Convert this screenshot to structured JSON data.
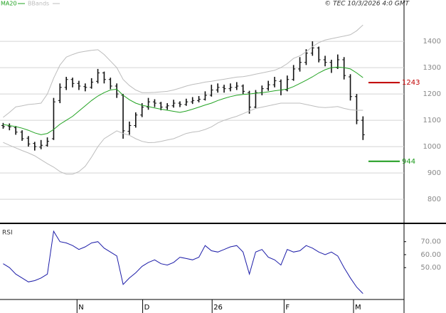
{
  "header": {
    "credit": "© TEC 10/3/2026 4:0 GMT"
  },
  "chart_data": [
    {
      "type": "ohlc",
      "x": [
        0,
        1,
        2,
        3,
        4,
        5,
        6,
        7,
        8,
        9,
        10,
        11,
        12,
        13,
        14,
        15,
        16,
        17,
        18,
        19,
        20,
        21,
        22,
        23,
        24,
        25,
        26,
        27,
        28,
        29,
        30,
        31,
        32,
        33,
        34,
        35,
        36,
        37,
        38,
        39,
        40,
        41,
        42,
        43,
        44,
        45,
        46,
        47,
        48,
        49,
        50,
        51,
        52,
        53,
        54,
        55,
        56,
        57
      ],
      "xlim": [
        -0.5,
        63.5
      ],
      "ylim": [
        711,
        1557
      ],
      "yticks": [
        800,
        900,
        1000,
        1100,
        1200,
        1300,
        1400
      ],
      "grid": true,
      "bar_color": "#111111",
      "ohlc": [
        [
          1080,
          1090,
          1068,
          1076
        ],
        [
          1078,
          1088,
          1062,
          1075
        ],
        [
          1072,
          1078,
          1045,
          1055
        ],
        [
          1055,
          1062,
          1022,
          1030
        ],
        [
          1032,
          1040,
          1000,
          1010
        ],
        [
          1012,
          1018,
          985,
          1000
        ],
        [
          998,
          1025,
          990,
          1005
        ],
        [
          1005,
          1035,
          1000,
          1020
        ],
        [
          1030,
          1185,
          1025,
          1170
        ],
        [
          1175,
          1240,
          1165,
          1225
        ],
        [
          1225,
          1265,
          1215,
          1255
        ],
        [
          1255,
          1262,
          1225,
          1240
        ],
        [
          1240,
          1250,
          1215,
          1230
        ],
        [
          1228,
          1240,
          1210,
          1225
        ],
        [
          1225,
          1260,
          1220,
          1245
        ],
        [
          1248,
          1295,
          1240,
          1280
        ],
        [
          1280,
          1285,
          1240,
          1255
        ],
        [
          1255,
          1262,
          1218,
          1230
        ],
        [
          1230,
          1240,
          1185,
          1200
        ],
        [
          1195,
          1200,
          1030,
          1060
        ],
        [
          1058,
          1095,
          1045,
          1080
        ],
        [
          1080,
          1130,
          1072,
          1120
        ],
        [
          1120,
          1165,
          1112,
          1150
        ],
        [
          1150,
          1185,
          1140,
          1170
        ],
        [
          1170,
          1180,
          1150,
          1165
        ],
        [
          1165,
          1170,
          1138,
          1150
        ],
        [
          1150,
          1165,
          1140,
          1155
        ],
        [
          1155,
          1178,
          1148,
          1165
        ],
        [
          1165,
          1172,
          1150,
          1160
        ],
        [
          1160,
          1182,
          1155,
          1170
        ],
        [
          1170,
          1188,
          1162,
          1175
        ],
        [
          1175,
          1192,
          1168,
          1180
        ],
        [
          1180,
          1210,
          1175,
          1195
        ],
        [
          1195,
          1235,
          1190,
          1215
        ],
        [
          1215,
          1240,
          1205,
          1225
        ],
        [
          1225,
          1235,
          1205,
          1220
        ],
        [
          1220,
          1240,
          1210,
          1225
        ],
        [
          1225,
          1245,
          1215,
          1230
        ],
        [
          1230,
          1236,
          1200,
          1210
        ],
        [
          1205,
          1212,
          1125,
          1150
        ],
        [
          1150,
          1215,
          1145,
          1205
        ],
        [
          1205,
          1232,
          1195,
          1220
        ],
        [
          1220,
          1250,
          1212,
          1235
        ],
        [
          1235,
          1265,
          1225,
          1250
        ],
        [
          1248,
          1255,
          1195,
          1215
        ],
        [
          1215,
          1270,
          1210,
          1255
        ],
        [
          1255,
          1310,
          1250,
          1295
        ],
        [
          1295,
          1340,
          1285,
          1320
        ],
        [
          1320,
          1370,
          1310,
          1355
        ],
        [
          1355,
          1400,
          1345,
          1375
        ],
        [
          1375,
          1380,
          1320,
          1330
        ],
        [
          1330,
          1345,
          1305,
          1320
        ],
        [
          1320,
          1330,
          1280,
          1300
        ],
        [
          1300,
          1350,
          1295,
          1330
        ],
        [
          1330,
          1340,
          1255,
          1270
        ],
        [
          1265,
          1275,
          1175,
          1190
        ],
        [
          1190,
          1200,
          1085,
          1100
        ],
        [
          1100,
          1115,
          1025,
          1045
        ]
      ],
      "series": [
        {
          "name": "MA20",
          "color": "#22a322",
          "values": [
            1084,
            1080,
            1076,
            1070,
            1062,
            1052,
            1045,
            1050,
            1065,
            1085,
            1100,
            1115,
            1135,
            1155,
            1175,
            1192,
            1205,
            1215,
            1218,
            1195,
            1178,
            1165,
            1157,
            1152,
            1147,
            1142,
            1138,
            1134,
            1130,
            1135,
            1142,
            1150,
            1158,
            1165,
            1175,
            1183,
            1190,
            1195,
            1198,
            1200,
            1203,
            1205,
            1208,
            1212,
            1215,
            1219,
            1228,
            1240,
            1252,
            1265,
            1280,
            1292,
            1300,
            1302,
            1300,
            1295,
            1280,
            1262
          ]
        },
        {
          "name": "BBands",
          "color": "#bdbdbd",
          "upper": [
            1111,
            1130,
            1151,
            1155,
            1160,
            1162,
            1165,
            1200,
            1260,
            1310,
            1340,
            1350,
            1358,
            1362,
            1366,
            1368,
            1350,
            1325,
            1300,
            1255,
            1232,
            1215,
            1205,
            1205,
            1206,
            1208,
            1210,
            1215,
            1222,
            1230,
            1236,
            1240,
            1245,
            1248,
            1252,
            1256,
            1260,
            1264,
            1266,
            1270,
            1275,
            1280,
            1285,
            1290,
            1300,
            1315,
            1335,
            1345,
            1360,
            1380,
            1395,
            1405,
            1410,
            1415,
            1420,
            1425,
            1440,
            1462
          ],
          "lower": [
            1016,
            1005,
            995,
            985,
            976,
            965,
            950,
            935,
            922,
            905,
            895,
            895,
            905,
            925,
            960,
            1000,
            1030,
            1045,
            1060,
            1050,
            1043,
            1030,
            1020,
            1015,
            1016,
            1020,
            1025,
            1030,
            1040,
            1050,
            1055,
            1058,
            1065,
            1075,
            1090,
            1100,
            1108,
            1115,
            1125,
            1135,
            1145,
            1150,
            1155,
            1160,
            1165,
            1165,
            1165,
            1165,
            1160,
            1155,
            1150,
            1148,
            1150,
            1152,
            1145,
            1140,
            1138,
            1138
          ]
        }
      ],
      "price_lines": [
        {
          "value": 1243,
          "color": "#c00000"
        },
        {
          "value": 944,
          "color": "#1a9a1a"
        }
      ]
    },
    {
      "type": "line",
      "title": "RSI",
      "x": [
        0,
        1,
        2,
        3,
        4,
        5,
        6,
        7,
        8,
        9,
        10,
        11,
        12,
        13,
        14,
        15,
        16,
        17,
        18,
        19,
        20,
        21,
        22,
        23,
        24,
        25,
        26,
        27,
        28,
        29,
        30,
        31,
        32,
        33,
        34,
        35,
        36,
        37,
        38,
        39,
        40,
        41,
        42,
        43,
        44,
        45,
        46,
        47,
        48,
        49,
        50,
        51,
        52,
        53,
        54,
        55,
        56,
        57
      ],
      "xlim": [
        -0.5,
        63.5
      ],
      "xticks": [
        {
          "value": 11.7,
          "label": "N"
        },
        {
          "value": 22.1,
          "label": "D"
        },
        {
          "value": 33.1,
          "label": "26"
        },
        {
          "value": 44.5,
          "label": "F"
        },
        {
          "value": 55.5,
          "label": "M"
        }
      ],
      "ylim": [
        26,
        83
      ],
      "yticks": [
        {
          "value": 50,
          "label": "50.00"
        },
        {
          "value": 60,
          "label": "60.00"
        },
        {
          "value": 70,
          "label": "70.00"
        }
      ],
      "grid": false,
      "color": "#1c1ca8",
      "values": [
        53,
        50,
        45,
        42,
        39,
        40,
        42,
        45,
        78,
        70,
        69,
        67,
        64,
        66,
        69,
        70,
        65,
        62,
        59,
        37,
        42,
        46,
        51,
        54,
        56,
        53,
        52,
        54,
        58,
        57,
        56,
        58,
        67,
        63,
        62,
        64,
        66,
        67,
        62,
        45,
        62,
        64,
        58,
        56,
        52,
        64,
        62,
        63,
        67,
        65,
        62,
        60,
        62,
        59,
        50,
        42,
        35,
        30
      ]
    }
  ]
}
